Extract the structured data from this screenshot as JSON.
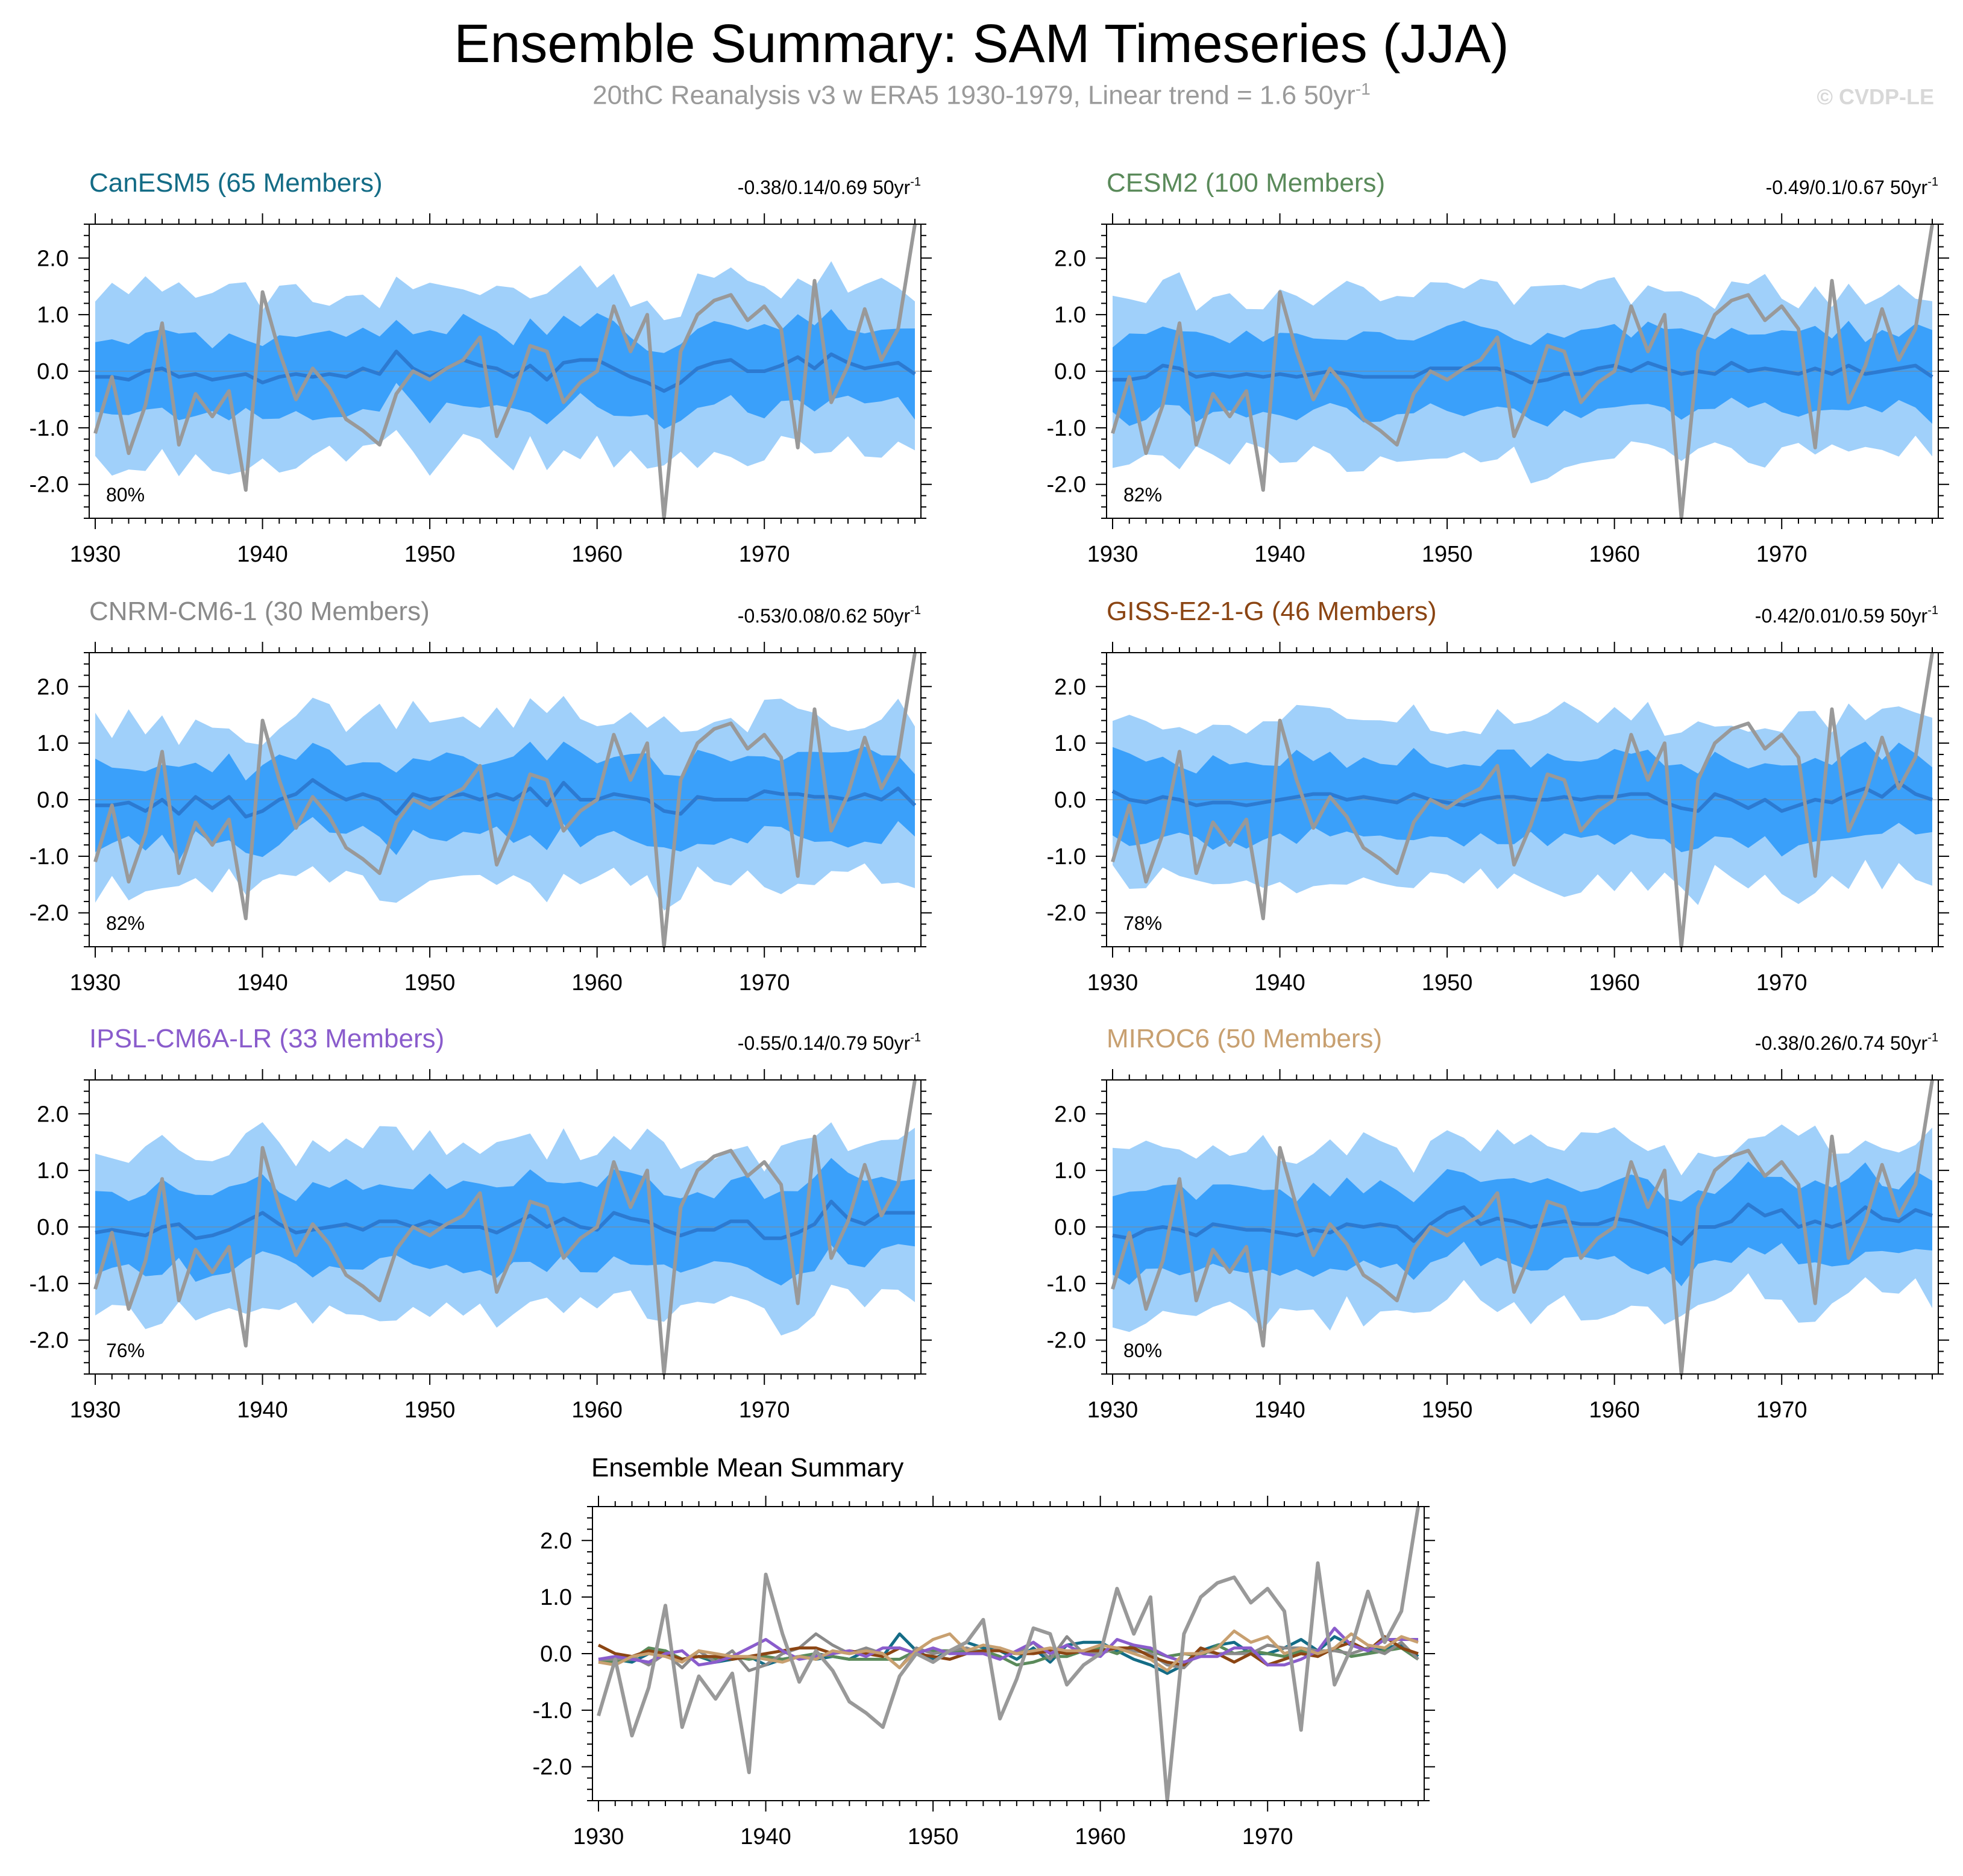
{
  "title": "Ensemble Summary: SAM Timeseries (JJA)",
  "subtitle_main": "20thC Reanalysis v3 w ERA5 1930-1979, Linear trend = 1.6 50yr",
  "subtitle_sup": "-1",
  "credit": "© CVDP-LE",
  "colors": {
    "band_outer": "#a0d0fa",
    "band_inner": "#3aa0fa",
    "ens_mean": "#2c7ad1",
    "obs": "#999999",
    "zero_line": "#888888"
  },
  "chart_data": [
    {
      "type": "line",
      "title": "CanESM5 (65 Members)",
      "title_color": "#146c86",
      "trend_label": "-0.38/0.14/0.69 50yr",
      "trend_sup": "-1",
      "percent_label": "80%",
      "x_start": 1930,
      "xticks": [
        "1930",
        "1940",
        "1950",
        "1960",
        "1970"
      ],
      "yticks": [
        "2.0",
        "1.0",
        "0.0",
        "-1.0",
        "-2.0"
      ],
      "ylim": [
        -2.6,
        2.6
      ],
      "series": [
        {
          "name": "ensemble mean",
          "values": [
            -0.1,
            -0.1,
            -0.15,
            0.0,
            0.05,
            -0.1,
            -0.05,
            -0.15,
            -0.1,
            -0.05,
            -0.2,
            -0.1,
            -0.05,
            -0.1,
            -0.05,
            -0.1,
            0.05,
            -0.05,
            0.35,
            0.05,
            -0.1,
            0.05,
            0.2,
            0.1,
            0.05,
            -0.1,
            0.1,
            -0.15,
            0.15,
            0.2,
            0.2,
            0.05,
            -0.1,
            -0.2,
            -0.35,
            -0.2,
            0.05,
            0.15,
            0.2,
            0.0,
            0.0,
            0.1,
            0.25,
            0.05,
            0.3,
            0.15,
            0.05,
            0.1,
            0.15,
            -0.05
          ]
        }
      ]
    },
    {
      "type": "line",
      "title": "CESM2 (100 Members)",
      "title_color": "#5a8a5a",
      "trend_label": "-0.49/0.1/0.67 50yr",
      "trend_sup": "-1",
      "percent_label": "82%",
      "x_start": 1930,
      "xticks": [
        "1930",
        "1940",
        "1950",
        "1960",
        "1970"
      ],
      "yticks": [
        "2.0",
        "1.0",
        "0.0",
        "-1.0",
        "-2.0"
      ],
      "ylim": [
        -2.6,
        2.6
      ],
      "series": [
        {
          "name": "ensemble mean",
          "values": [
            -0.15,
            -0.15,
            -0.1,
            0.1,
            0.05,
            -0.1,
            -0.05,
            -0.1,
            -0.05,
            -0.1,
            -0.05,
            -0.1,
            -0.05,
            0.0,
            -0.05,
            -0.1,
            -0.1,
            -0.1,
            -0.1,
            0.05,
            0.05,
            0.05,
            0.05,
            0.05,
            -0.05,
            -0.2,
            -0.15,
            -0.05,
            -0.05,
            0.05,
            0.1,
            0.0,
            0.15,
            0.05,
            -0.05,
            0.0,
            -0.05,
            0.15,
            0.0,
            0.05,
            0.0,
            -0.05,
            0.05,
            -0.05,
            0.1,
            -0.05,
            0.0,
            0.05,
            0.1,
            -0.1
          ]
        }
      ]
    },
    {
      "type": "line",
      "title": "CNRM-CM6-1 (30 Members)",
      "title_color": "#8a8a8a",
      "trend_label": "-0.53/0.08/0.62 50yr",
      "trend_sup": "-1",
      "percent_label": "82%",
      "x_start": 1930,
      "xticks": [
        "1930",
        "1940",
        "1950",
        "1960",
        "1970"
      ],
      "yticks": [
        "2.0",
        "1.0",
        "0.0",
        "-1.0",
        "-2.0"
      ],
      "ylim": [
        -2.6,
        2.6
      ],
      "series": [
        {
          "name": "ensemble mean",
          "values": [
            -0.1,
            -0.1,
            -0.05,
            -0.2,
            0.0,
            -0.25,
            0.05,
            -0.15,
            0.05,
            -0.3,
            -0.2,
            0.0,
            0.1,
            0.35,
            0.15,
            0.0,
            0.1,
            0.0,
            -0.25,
            0.1,
            0.0,
            0.05,
            0.1,
            0.0,
            0.1,
            0.0,
            0.2,
            -0.1,
            0.3,
            0.0,
            0.0,
            0.1,
            0.05,
            0.0,
            -0.2,
            -0.25,
            0.05,
            0.0,
            0.0,
            0.0,
            0.15,
            0.1,
            0.1,
            0.05,
            0.05,
            0.0,
            0.1,
            0.0,
            0.2,
            -0.1
          ]
        }
      ]
    },
    {
      "type": "line",
      "title": "GISS-E2-1-G (46 Members)",
      "title_color": "#8b4513",
      "trend_label": "-0.42/0.01/0.59 50yr",
      "trend_sup": "-1",
      "percent_label": "78%",
      "x_start": 1930,
      "xticks": [
        "1930",
        "1940",
        "1950",
        "1960",
        "1970"
      ],
      "yticks": [
        "2.0",
        "1.0",
        "0.0",
        "-1.0",
        "-2.0"
      ],
      "ylim": [
        -2.6,
        2.6
      ],
      "series": [
        {
          "name": "ensemble mean",
          "values": [
            0.15,
            0.0,
            -0.05,
            0.05,
            0.0,
            -0.1,
            -0.05,
            -0.05,
            -0.1,
            -0.05,
            0.0,
            0.05,
            0.1,
            0.1,
            0.0,
            0.05,
            0.0,
            -0.05,
            0.1,
            0.0,
            -0.05,
            -0.1,
            0.0,
            0.05,
            0.05,
            0.0,
            0.0,
            0.05,
            0.0,
            0.05,
            0.05,
            0.1,
            0.1,
            -0.05,
            -0.15,
            -0.2,
            0.1,
            0.0,
            -0.15,
            0.0,
            -0.2,
            -0.1,
            0.0,
            -0.05,
            0.1,
            0.2,
            0.05,
            0.3,
            0.1,
            0.0
          ]
        }
      ]
    },
    {
      "type": "line",
      "title": "IPSL-CM6A-LR (33 Members)",
      "title_color": "#8a5ccc",
      "trend_label": "-0.55/0.14/0.79 50yr",
      "trend_sup": "-1",
      "percent_label": "76%",
      "x_start": 1930,
      "xticks": [
        "1930",
        "1940",
        "1950",
        "1960",
        "1970"
      ],
      "yticks": [
        "2.0",
        "1.0",
        "0.0",
        "-1.0",
        "-2.0"
      ],
      "ylim": [
        -2.6,
        2.6
      ],
      "series": [
        {
          "name": "ensemble mean",
          "values": [
            -0.1,
            -0.05,
            -0.1,
            -0.15,
            0.0,
            0.05,
            -0.2,
            -0.15,
            -0.05,
            0.1,
            0.25,
            0.05,
            -0.1,
            -0.05,
            0.0,
            0.05,
            -0.05,
            0.1,
            0.1,
            0.0,
            0.1,
            0.0,
            0.0,
            0.0,
            -0.1,
            0.05,
            0.2,
            0.0,
            0.15,
            0.0,
            -0.05,
            0.25,
            0.15,
            0.1,
            -0.05,
            -0.15,
            -0.05,
            -0.05,
            0.1,
            0.1,
            -0.2,
            -0.2,
            -0.1,
            0.05,
            0.45,
            0.15,
            0.05,
            0.25,
            0.25,
            0.25
          ]
        }
      ]
    },
    {
      "type": "line",
      "title": "MIROC6 (50 Members)",
      "title_color": "#c8a070",
      "trend_label": "-0.38/0.26/0.74 50yr",
      "trend_sup": "-1",
      "percent_label": "80%",
      "x_start": 1930,
      "xticks": [
        "1930",
        "1940",
        "1950",
        "1960",
        "1970"
      ],
      "yticks": [
        "2.0",
        "1.0",
        "0.0",
        "-1.0",
        "-2.0"
      ],
      "ylim": [
        -2.6,
        2.6
      ],
      "series": [
        {
          "name": "ensemble mean",
          "values": [
            -0.15,
            -0.2,
            -0.05,
            0.0,
            -0.05,
            -0.15,
            0.05,
            0.0,
            -0.05,
            -0.05,
            -0.1,
            -0.15,
            -0.05,
            -0.1,
            0.05,
            0.0,
            0.05,
            0.0,
            -0.25,
            0.05,
            0.25,
            0.35,
            0.05,
            0.15,
            0.1,
            0.0,
            0.05,
            0.1,
            0.05,
            0.05,
            0.15,
            0.1,
            0.0,
            -0.1,
            -0.3,
            0.0,
            0.0,
            0.1,
            0.4,
            0.2,
            0.3,
            0.0,
            0.1,
            0.0,
            0.1,
            0.35,
            0.15,
            0.1,
            0.3,
            0.2
          ]
        }
      ]
    },
    {
      "type": "line",
      "title": "Ensemble Mean Summary",
      "title_color": "#000000",
      "x_start": 1930,
      "xticks": [
        "1930",
        "1940",
        "1950",
        "1960",
        "1970"
      ],
      "yticks": [
        "2.0",
        "1.0",
        "0.0",
        "-1.0",
        "-2.0"
      ],
      "ylim": [
        -2.6,
        2.6
      ],
      "series": [
        {
          "name": "20thC Reanalysis v3 w ERA5",
          "values": [
            -1.1,
            -0.1,
            -1.45,
            -0.6,
            0.85,
            -1.3,
            -0.4,
            -0.8,
            -0.35,
            -2.1,
            1.4,
            0.35,
            -0.5,
            0.05,
            -0.3,
            -0.85,
            -1.05,
            -1.3,
            -0.4,
            0.0,
            -0.15,
            0.05,
            0.2,
            0.6,
            -1.15,
            -0.45,
            0.45,
            0.35,
            -0.55,
            -0.2,
            0.0,
            1.15,
            0.35,
            1.0,
            -2.6,
            0.35,
            1.0,
            1.25,
            1.35,
            0.9,
            1.15,
            0.75,
            -1.35,
            1.6,
            -0.55,
            0.1,
            1.1,
            0.2,
            0.75,
            2.6
          ]
        }
      ]
    }
  ]
}
